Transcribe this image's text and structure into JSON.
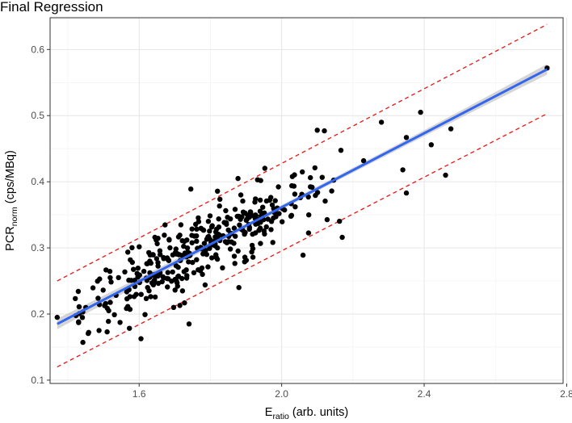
{
  "chart_data": {
    "type": "scatter",
    "title": "Final Regression",
    "xlabel": {
      "main": "E",
      "sub": "ratio",
      "rest": " (arb. units)"
    },
    "ylabel": {
      "main": "PCR",
      "sub": "norm",
      "rest": " (cps/MBq)"
    },
    "xlim": [
      1.35,
      2.79
    ],
    "ylim": [
      0.095,
      0.648
    ],
    "xticks": [
      1.6,
      2.0,
      2.4,
      2.8
    ],
    "xtick_labels": [
      "1.6",
      "2.0",
      "2.4",
      "2.8"
    ],
    "yticks": [
      0.1,
      0.2,
      0.3,
      0.4,
      0.5,
      0.6
    ],
    "ytick_labels": [
      "0.1",
      "0.2",
      "0.3",
      "0.4",
      "0.5",
      "0.6"
    ],
    "grid": true,
    "regression": {
      "x_range": [
        1.37,
        2.745
      ],
      "y_start": 0.185,
      "y_end": 0.57,
      "color": "#3366ee",
      "band_halfwidth_ends": 0.008,
      "band_halfwidth_mid": 0.0035
    },
    "prediction_bounds": {
      "upper": {
        "x": [
          1.37,
          2.745
        ],
        "y": [
          0.25,
          0.638
        ]
      },
      "lower": {
        "x": [
          1.37,
          2.745
        ],
        "y": [
          0.12,
          0.503
        ]
      },
      "color": "#ee1111"
    },
    "n_points": 380,
    "highlighted_points": [
      [
        1.37,
        0.195
      ],
      [
        1.43,
        0.187
      ],
      [
        1.51,
        0.173
      ],
      [
        1.74,
        0.185
      ],
      [
        2.28,
        0.49
      ],
      [
        2.35,
        0.467
      ],
      [
        2.39,
        0.505
      ],
      [
        2.42,
        0.456
      ],
      [
        2.46,
        0.41
      ],
      [
        2.475,
        0.48
      ],
      [
        2.34,
        0.418
      ],
      [
        2.35,
        0.383
      ],
      [
        2.745,
        0.572
      ],
      [
        2.1,
        0.478
      ],
      [
        2.12,
        0.477
      ],
      [
        1.88,
        0.24
      ],
      [
        2.06,
        0.289
      ],
      [
        2.17,
        0.316
      ]
    ]
  }
}
